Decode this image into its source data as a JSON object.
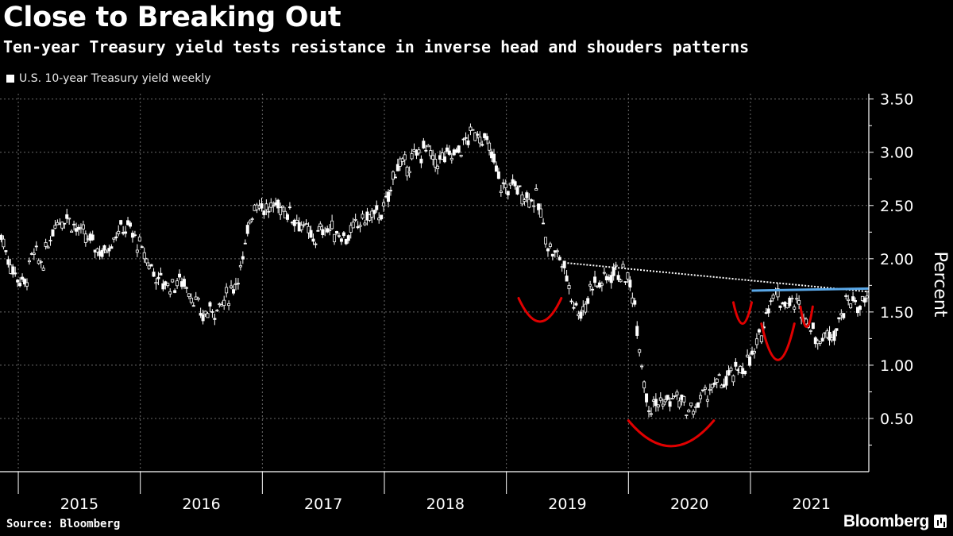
{
  "header": {
    "title": "Close to Breaking Out",
    "subtitle": "Ten-year Treasury yield tests resistance in inverse head and shouders patterns"
  },
  "footer": {
    "source": "Source: Bloomberg",
    "brand": "Bloomberg",
    "brand_icon": "bar-chart-icon"
  },
  "colors": {
    "background": "#000000",
    "series": "#ffffff",
    "pattern_arcs": "#e00000",
    "neckline": "#ffffff",
    "resistance": "#5aa8e8",
    "grid": "#6a6a6a"
  },
  "chart_data": {
    "type": "line",
    "style": "candlestick-like weekly bars",
    "title": "Close to Breaking Out",
    "subtitle": "Ten-year Treasury yield tests resistance in inverse head and shouders patterns",
    "legend": [
      "U.S. 10-year Treasury yield weekly"
    ],
    "legend_placement": "top-left",
    "ylabel": "Percent",
    "ylim": [
      0.0,
      3.55
    ],
    "y_ticks": [
      "0.50",
      "1.00",
      "1.50",
      "2.00",
      "2.50",
      "3.00",
      "3.50"
    ],
    "y_axis_side": "right",
    "x_ticks": [
      "2015",
      "2016",
      "2017",
      "2018",
      "2019",
      "2020",
      "2021"
    ],
    "xlim": [
      2014.85,
      2021.97
    ],
    "grid": true,
    "series": [
      {
        "name": "U.S. 10-year Treasury yield weekly",
        "x": [
          2014.85,
          2014.95,
          2015.05,
          2015.12,
          2015.2,
          2015.3,
          2015.4,
          2015.5,
          2015.6,
          2015.7,
          2015.8,
          2015.9,
          2016.0,
          2016.05,
          2016.15,
          2016.25,
          2016.35,
          2016.45,
          2016.5,
          2016.55,
          2016.65,
          2016.75,
          2016.85,
          2016.9,
          2016.95,
          2017.05,
          2017.15,
          2017.2,
          2017.3,
          2017.4,
          2017.45,
          2017.5,
          2017.6,
          2017.7,
          2017.8,
          2017.9,
          2018.0,
          2018.05,
          2018.1,
          2018.15,
          2018.25,
          2018.35,
          2018.4,
          2018.5,
          2018.6,
          2018.7,
          2018.75,
          2018.8,
          2018.85,
          2018.9,
          2018.95,
          2019.0,
          2019.05,
          2019.15,
          2019.25,
          2019.35,
          2019.45,
          2019.55,
          2019.6,
          2019.65,
          2019.7,
          2019.75,
          2019.8,
          2019.85,
          2019.9,
          2019.95,
          2020.0,
          2020.05,
          2020.1,
          2020.15,
          2020.18,
          2020.22,
          2020.3,
          2020.4,
          2020.5,
          2020.55,
          2020.6,
          2020.7,
          2020.8,
          2020.9,
          2021.0,
          2021.05,
          2021.1,
          2021.15,
          2021.2,
          2021.25,
          2021.3,
          2021.4,
          2021.45,
          2021.5,
          2021.55,
          2021.6,
          2021.65,
          2021.7,
          2021.75,
          2021.8,
          2021.85,
          2021.9,
          2021.95
        ],
        "values": [
          2.25,
          1.9,
          1.75,
          2.05,
          1.95,
          2.35,
          2.4,
          2.25,
          2.15,
          2.05,
          2.25,
          2.3,
          2.1,
          2.0,
          1.8,
          1.75,
          1.8,
          1.6,
          1.45,
          1.5,
          1.55,
          1.7,
          2.0,
          2.4,
          2.55,
          2.45,
          2.5,
          2.45,
          2.35,
          2.2,
          2.2,
          2.3,
          2.25,
          2.2,
          2.35,
          2.4,
          2.45,
          2.65,
          2.9,
          2.85,
          2.95,
          3.05,
          2.9,
          2.95,
          3.0,
          3.15,
          3.2,
          3.15,
          3.05,
          2.9,
          2.7,
          2.65,
          2.7,
          2.6,
          2.55,
          2.1,
          2.0,
          1.6,
          1.5,
          1.55,
          1.8,
          1.75,
          1.8,
          1.85,
          1.9,
          1.85,
          1.8,
          1.6,
          1.1,
          0.7,
          0.6,
          0.65,
          0.65,
          0.7,
          0.55,
          0.6,
          0.7,
          0.8,
          0.85,
          0.95,
          1.05,
          1.15,
          1.35,
          1.6,
          1.7,
          1.6,
          1.6,
          1.55,
          1.45,
          1.35,
          1.25,
          1.25,
          1.3,
          1.35,
          1.5,
          1.6,
          1.6,
          1.55,
          1.6
        ]
      }
    ],
    "annotations": [
      {
        "type": "neckline",
        "style": "dotted",
        "color": "#ffffff",
        "x": [
          2019.5,
          2021.97
        ],
        "y": [
          1.96,
          1.69
        ]
      },
      {
        "type": "resistance",
        "color": "#5aa8e8",
        "x": [
          2021.01,
          2021.97
        ],
        "y": [
          1.7,
          1.72
        ]
      },
      {
        "type": "arc",
        "label": "left-shoulder",
        "x_range": [
          2019.1,
          2019.45
        ],
        "bottom": 1.41,
        "top": 1.63
      },
      {
        "type": "arc",
        "label": "head",
        "x_range": [
          2020.0,
          2020.7
        ],
        "bottom": 0.24,
        "top": 0.48
      },
      {
        "type": "arc",
        "label": "right-shoulder",
        "x_range": [
          2020.86,
          2021.01
        ],
        "bottom": 1.39,
        "top": 1.59
      },
      {
        "type": "arc",
        "label": "head-2021",
        "x_range": [
          2021.09,
          2021.36
        ],
        "bottom": 1.05,
        "top": 1.39
      },
      {
        "type": "arc",
        "label": "right-shoulder-2021",
        "x_range": [
          2021.41,
          2021.51
        ],
        "bottom": 1.36,
        "top": 1.55
      }
    ]
  }
}
